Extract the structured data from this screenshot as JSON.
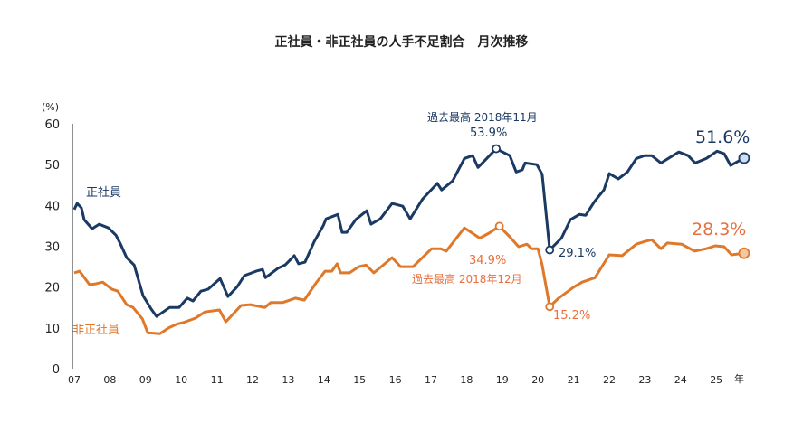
{
  "chart_data": {
    "type": "line",
    "title": "正社員・非正社員の人手不足割合　月次推移",
    "ylabel": "(%)",
    "xlabel": "年",
    "ylim": [
      0,
      60
    ],
    "yticks": [
      0,
      10,
      20,
      30,
      40,
      50,
      60
    ],
    "xlim": [
      2007,
      2025.9
    ],
    "xtick_labels": [
      "07",
      "08",
      "09",
      "10",
      "11",
      "12",
      "13",
      "14",
      "15",
      "16",
      "17",
      "18",
      "19",
      "20",
      "21",
      "22",
      "23",
      "24",
      "25"
    ],
    "xtick_values": [
      2007,
      2008,
      2009,
      2010,
      2011,
      2012,
      2013,
      2014,
      2015,
      2016,
      2017,
      2018,
      2019,
      2020,
      2021,
      2022,
      2023,
      2024,
      2025
    ],
    "grid": false,
    "series": [
      {
        "name": "正社員",
        "color": "#1b3a63",
        "x": [
          2007.0,
          2007.08,
          2007.2,
          2007.28,
          2007.5,
          2007.7,
          2007.96,
          2008.17,
          2008.3,
          2008.47,
          2008.68,
          2008.93,
          2009.16,
          2009.31,
          2009.67,
          2009.94,
          2010.17,
          2010.33,
          2010.55,
          2010.76,
          2011.09,
          2011.31,
          2011.57,
          2011.77,
          2012.1,
          2012.28,
          2012.36,
          2012.71,
          2012.91,
          2013.17,
          2013.29,
          2013.47,
          2013.73,
          2013.98,
          2014.06,
          2014.39,
          2014.51,
          2014.64,
          2014.89,
          2015.2,
          2015.32,
          2015.58,
          2015.91,
          2016.21,
          2016.42,
          2016.77,
          2017.18,
          2017.3,
          2017.61,
          2017.94,
          2018.17,
          2018.32,
          2018.5,
          2018.83,
          2019.21,
          2019.39,
          2019.56,
          2019.64,
          2019.97,
          2020.12,
          2020.33,
          2020.66,
          2020.91,
          2021.16,
          2021.34,
          2021.59,
          2021.85,
          2022.0,
          2022.25,
          2022.51,
          2022.76,
          2022.99,
          2023.19,
          2023.45,
          2023.95,
          2024.21,
          2024.41,
          2024.72,
          2025.02,
          2025.22,
          2025.4,
          2025.78
        ],
        "y": [
          39,
          40.5,
          39.4,
          36.5,
          34.3,
          35.4,
          34.5,
          32.7,
          30.5,
          27.2,
          25.4,
          17.9,
          14.6,
          12.8,
          15,
          15,
          17.3,
          16.6,
          19,
          19.5,
          22.1,
          17.7,
          20.1,
          22.8,
          23.9,
          24.3,
          22.3,
          24.6,
          25.4,
          27.7,
          25.7,
          26.1,
          31.2,
          35,
          36.7,
          37.8,
          33.4,
          33.4,
          36.5,
          38.7,
          35.4,
          36.7,
          40.5,
          39.8,
          36.7,
          41.6,
          45.4,
          43.8,
          46,
          51.5,
          52.2,
          49.3,
          50.9,
          53.9,
          52.2,
          48.2,
          48.7,
          50.4,
          50,
          47.6,
          29.1,
          32,
          36.5,
          37.8,
          37.6,
          41,
          43.8,
          47.8,
          46.5,
          48.2,
          51.5,
          52.2,
          52.2,
          50.4,
          53.1,
          52.2,
          50.4,
          51.5,
          53.3,
          52.7,
          49.8,
          51.6
        ]
      },
      {
        "name": "非正社員",
        "color": "#e0782a",
        "x": [
          2007.0,
          2007.15,
          2007.43,
          2007.6,
          2007.8,
          2008.05,
          2008.22,
          2008.47,
          2008.65,
          2008.91,
          2009.06,
          2009.4,
          2009.65,
          2009.9,
          2010.05,
          2010.4,
          2010.66,
          2011.07,
          2011.25,
          2011.68,
          2011.94,
          2012.34,
          2012.51,
          2012.84,
          2013.2,
          2013.45,
          2013.78,
          2014.03,
          2014.22,
          2014.37,
          2014.47,
          2014.72,
          2014.98,
          2015.18,
          2015.4,
          2015.91,
          2016.15,
          2016.5,
          2017.02,
          2017.28,
          2017.43,
          2017.94,
          2018.37,
          2018.63,
          2018.92,
          2019.21,
          2019.46,
          2019.69,
          2019.82,
          2020.0,
          2020.12,
          2020.33,
          2020.58,
          2020.99,
          2021.24,
          2021.6,
          2022.0,
          2022.36,
          2022.76,
          2023.01,
          2023.19,
          2023.45,
          2023.63,
          2024.03,
          2024.39,
          2024.72,
          2024.97,
          2025.22,
          2025.43,
          2025.78
        ],
        "y": [
          23.5,
          23.9,
          20.6,
          20.8,
          21.2,
          19.5,
          19,
          15.7,
          15,
          12.2,
          8.8,
          8.6,
          10,
          11,
          11.3,
          12.4,
          13.9,
          14.4,
          11.5,
          15.5,
          15.7,
          15,
          16.2,
          16.2,
          17.3,
          16.8,
          21,
          23.9,
          23.9,
          25.7,
          23.5,
          23.5,
          25,
          25.4,
          23.5,
          27.2,
          25,
          25,
          29.4,
          29.4,
          28.8,
          34.5,
          32,
          33.2,
          34.9,
          32.3,
          29.9,
          30.5,
          29.4,
          29.4,
          25.4,
          15.2,
          17.3,
          19.9,
          21.2,
          22.3,
          27.9,
          27.7,
          30.5,
          31.2,
          31.6,
          29.4,
          30.8,
          30.5,
          28.8,
          29.4,
          30.1,
          29.9,
          27.9,
          28.3
        ]
      }
    ],
    "annotations": {
      "regular_peak_label": "過去最高 2018年11月",
      "regular_peak_value": "53.9%",
      "regular_low_value": "29.1%",
      "regular_latest_value": "51.6%",
      "nonregular_peak_label": "過去最高 2018年12月",
      "nonregular_peak_value": "34.9%",
      "nonregular_low_value": "15.2%",
      "nonregular_latest_value": "28.3%"
    },
    "colors": {
      "regular": "#1b3a63",
      "nonregular": "#e0782a",
      "nonregular_annotation": "#e8703f",
      "marker_fill_regular": "#cfe0f5",
      "marker_fill_nonregular": "#f6c8a0"
    }
  }
}
